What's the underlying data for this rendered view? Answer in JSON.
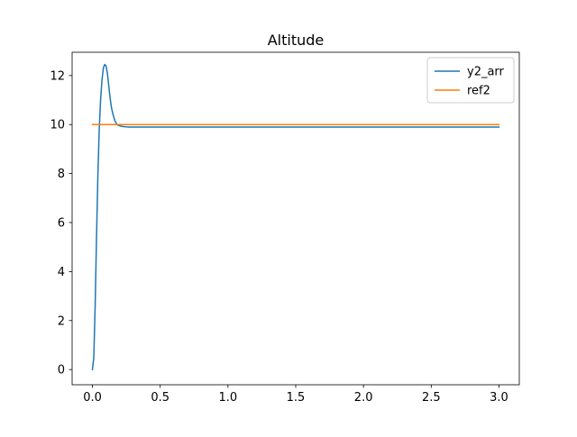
{
  "chart_data": {
    "type": "line",
    "title": "Altitude",
    "xlabel": "",
    "ylabel": "",
    "xlim": [
      -0.15,
      3.15
    ],
    "ylim": [
      -0.62,
      12.95
    ],
    "xticks": [
      0.0,
      0.5,
      1.0,
      1.5,
      2.0,
      2.5,
      3.0
    ],
    "xtick_labels": [
      "0.0",
      "0.5",
      "1.0",
      "1.5",
      "2.0",
      "2.5",
      "3.0"
    ],
    "yticks": [
      0,
      2,
      4,
      6,
      8,
      10,
      12
    ],
    "ytick_labels": [
      "0",
      "2",
      "4",
      "6",
      "8",
      "10",
      "12"
    ],
    "grid": false,
    "legend_position": "top-right",
    "series": [
      {
        "name": "y2_arr",
        "color": "#1f77b4",
        "x": [
          0.0,
          0.01,
          0.02,
          0.03,
          0.04,
          0.05,
          0.06,
          0.07,
          0.08,
          0.09,
          0.1,
          0.11,
          0.12,
          0.13,
          0.14,
          0.15,
          0.16,
          0.17,
          0.18,
          0.19,
          0.2,
          0.22,
          0.24,
          0.26,
          0.28,
          0.3,
          0.35,
          0.4,
          0.5,
          0.7,
          1.0,
          1.5,
          2.0,
          2.5,
          3.0
        ],
        "y": [
          0.0,
          0.5,
          2.6,
          5.4,
          7.9,
          9.8,
          11.0,
          11.8,
          12.3,
          12.45,
          12.4,
          12.1,
          11.6,
          11.1,
          10.7,
          10.45,
          10.25,
          10.1,
          10.02,
          9.97,
          9.95,
          9.92,
          9.91,
          9.9,
          9.9,
          9.9,
          9.9,
          9.9,
          9.9,
          9.9,
          9.9,
          9.9,
          9.9,
          9.9,
          9.9
        ]
      },
      {
        "name": "ref2",
        "color": "#ff7f0e",
        "x": [
          0.0,
          3.0
        ],
        "y": [
          10.0,
          10.0
        ]
      }
    ]
  }
}
